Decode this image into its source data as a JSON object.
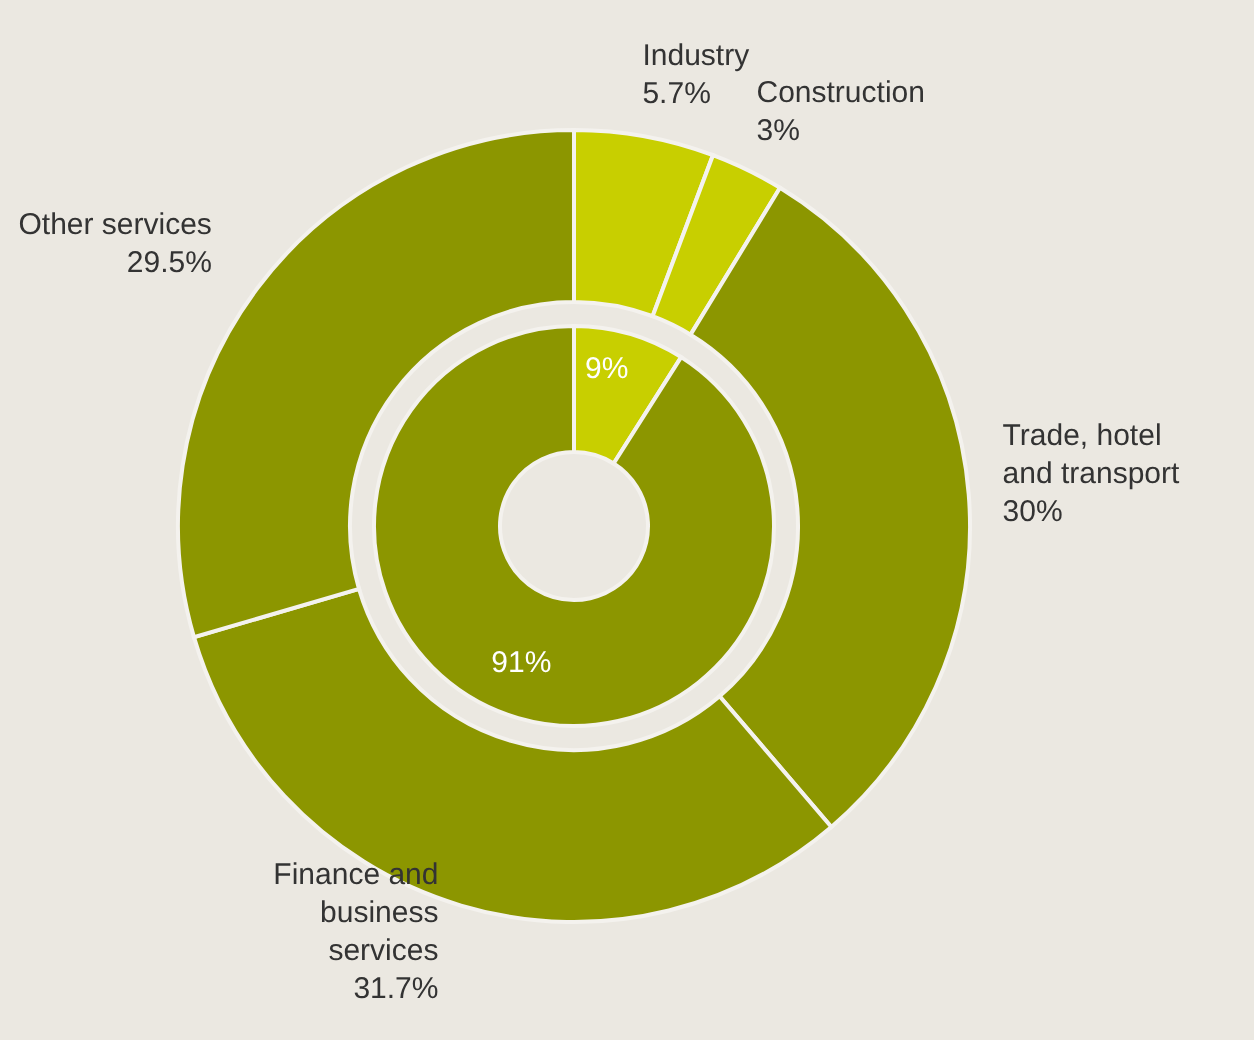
{
  "chart_data": [
    {
      "type": "donut",
      "categories": [
        "Industry",
        "Construction",
        "Trade, hotel and transport",
        "Finance and business services",
        "Other services"
      ],
      "values": [
        5.7,
        3,
        30,
        31.7,
        29.5
      ],
      "colors": [
        "#c8cf00",
        "#c8cf00",
        "#8c9600",
        "#8c9600",
        "#8c9600"
      ],
      "value_labels": [
        "5.7%",
        "3%",
        "30%",
        "31.7%",
        "29.5%"
      ]
    },
    {
      "type": "donut",
      "categories": [
        null,
        null
      ],
      "values": [
        9,
        91
      ],
      "colors": [
        "#c8cf00",
        "#8c9600"
      ],
      "value_labels": [
        "9%",
        "91%"
      ]
    }
  ]
}
